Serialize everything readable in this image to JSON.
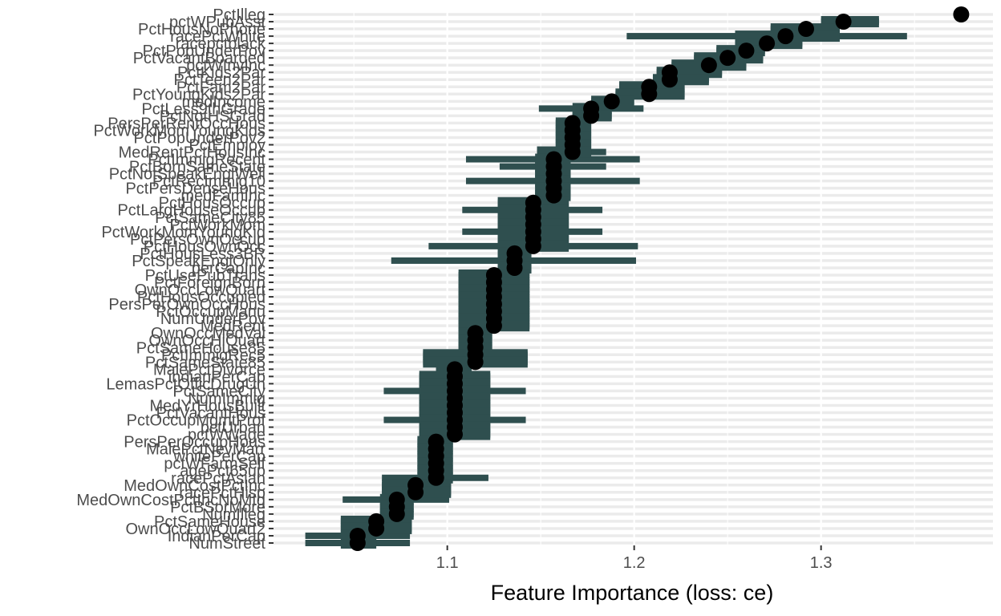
{
  "chart_data": {
    "type": "scatter",
    "title": "",
    "xlabel": "Feature Importance (loss: ce)",
    "ylabel": "",
    "xlim": [
      1.007,
      1.392
    ],
    "xticks": [
      1.1,
      1.2,
      1.3
    ],
    "xtick_labels": [
      "1.1",
      "1.2",
      "1.3"
    ],
    "grid": "on",
    "legend": "none",
    "colors": {
      "interval_bar": "#2f4f4f",
      "point": "#000000",
      "grid_major": "#ebebeb",
      "grid_minor": "#f2f2f2",
      "axis_text": "#4d4d4d"
    },
    "features": [
      {
        "name": "PctIlleg",
        "importance": 1.375,
        "q05": 1.375,
        "q95": 1.375,
        "min": 1.375,
        "max": 1.375
      },
      {
        "name": "pctWPubAsst",
        "importance": 1.312,
        "q05": 1.3,
        "q95": 1.331,
        "min": 1.3,
        "max": 1.331
      },
      {
        "name": "PctHousNoPhone",
        "importance": 1.292,
        "q05": 1.273,
        "q95": 1.31,
        "min": 1.273,
        "max": 1.31
      },
      {
        "name": "racePctWhite",
        "importance": 1.281,
        "q05": 1.254,
        "q95": 1.31,
        "min": 1.196,
        "max": 1.346
      },
      {
        "name": "racepctblack",
        "importance": 1.271,
        "q05": 1.254,
        "q95": 1.29,
        "min": 1.254,
        "max": 1.29
      },
      {
        "name": "PctPopUnderPov",
        "importance": 1.26,
        "q05": 1.244,
        "q95": 1.27,
        "min": 1.244,
        "max": 1.27
      },
      {
        "name": "PctVacantBoarded",
        "importance": 1.25,
        "q05": 1.232,
        "q95": 1.269,
        "min": 1.232,
        "max": 1.269
      },
      {
        "name": "pctWInvInc",
        "importance": 1.24,
        "q05": 1.22,
        "q95": 1.26,
        "min": 1.22,
        "max": 1.26
      },
      {
        "name": "PctKids2Par",
        "importance": 1.219,
        "q05": 1.212,
        "q95": 1.247,
        "min": 1.212,
        "max": 1.247
      },
      {
        "name": "PctTeen2Par",
        "importance": 1.219,
        "q05": 1.21,
        "q95": 1.24,
        "min": 1.21,
        "max": 1.24
      },
      {
        "name": "PctFam2Par",
        "importance": 1.208,
        "q05": 1.192,
        "q95": 1.227,
        "min": 1.192,
        "max": 1.227
      },
      {
        "name": "PctYoungKids2Par",
        "importance": 1.208,
        "q05": 1.19,
        "q95": 1.227,
        "min": 1.19,
        "max": 1.227
      },
      {
        "name": "medIncome",
        "importance": 1.188,
        "q05": 1.177,
        "q95": 1.2,
        "min": 1.177,
        "max": 1.2
      },
      {
        "name": "PctLess9thGrade",
        "importance": 1.177,
        "q05": 1.167,
        "q95": 1.188,
        "min": 1.149,
        "max": 1.205
      },
      {
        "name": "PctNotHSGrad",
        "importance": 1.177,
        "q05": 1.167,
        "q95": 1.188,
        "min": 1.167,
        "max": 1.188
      },
      {
        "name": "PersPerRentOccHous",
        "importance": 1.167,
        "q05": 1.158,
        "q95": 1.177,
        "min": 1.158,
        "max": 1.177
      },
      {
        "name": "PctWorkMomYoungKids",
        "importance": 1.167,
        "q05": 1.158,
        "q95": 1.177,
        "min": 1.158,
        "max": 1.177
      },
      {
        "name": "PctPopUnderPov2",
        "importance": 1.167,
        "q05": 1.158,
        "q95": 1.177,
        "min": 1.158,
        "max": 1.177
      },
      {
        "name": "PctEmploy",
        "importance": 1.167,
        "q05": 1.158,
        "q95": 1.177,
        "min": 1.158,
        "max": 1.177
      },
      {
        "name": "MedRentPctHousInc",
        "importance": 1.167,
        "q05": 1.148,
        "q95": 1.177,
        "min": 1.148,
        "max": 1.185
      },
      {
        "name": "PctImmigRecent",
        "importance": 1.157,
        "q05": 1.147,
        "q95": 1.166,
        "min": 1.11,
        "max": 1.203
      },
      {
        "name": "PctBornSameState",
        "importance": 1.157,
        "q05": 1.147,
        "q95": 1.166,
        "min": 1.128,
        "max": 1.185
      },
      {
        "name": "PctNotSpeakEnglWell",
        "importance": 1.157,
        "q05": 1.147,
        "q95": 1.166,
        "min": 1.147,
        "max": 1.166
      },
      {
        "name": "PctRecImmig10",
        "importance": 1.157,
        "q05": 1.147,
        "q95": 1.166,
        "min": 1.11,
        "max": 1.203
      },
      {
        "name": "PctPersDenseHous",
        "importance": 1.157,
        "q05": 1.147,
        "q95": 1.166,
        "min": 1.147,
        "max": 1.166
      },
      {
        "name": "medFamInc",
        "importance": 1.157,
        "q05": 1.147,
        "q95": 1.166,
        "min": 1.147,
        "max": 1.166
      },
      {
        "name": "PctHousOccup",
        "importance": 1.146,
        "q05": 1.127,
        "q95": 1.165,
        "min": 1.127,
        "max": 1.165
      },
      {
        "name": "PctLargHouseOccup",
        "importance": 1.146,
        "q05": 1.127,
        "q95": 1.165,
        "min": 1.108,
        "max": 1.183
      },
      {
        "name": "PctSameCity85",
        "importance": 1.146,
        "q05": 1.127,
        "q95": 1.165,
        "min": 1.127,
        "max": 1.165
      },
      {
        "name": "PctWorkMom",
        "importance": 1.146,
        "q05": 1.127,
        "q95": 1.165,
        "min": 1.127,
        "max": 1.165
      },
      {
        "name": "PctWorkMomYoungKid",
        "importance": 1.146,
        "q05": 1.127,
        "q95": 1.165,
        "min": 1.108,
        "max": 1.183
      },
      {
        "name": "PctPersOwnOccup",
        "importance": 1.146,
        "q05": 1.127,
        "q95": 1.165,
        "min": 1.127,
        "max": 1.165
      },
      {
        "name": "PctHousOwnOcc",
        "importance": 1.146,
        "q05": 1.127,
        "q95": 1.165,
        "min": 1.09,
        "max": 1.202
      },
      {
        "name": "PctHousLess3BR",
        "importance": 1.136,
        "q05": 1.127,
        "q95": 1.145,
        "min": 1.127,
        "max": 1.145
      },
      {
        "name": "PctSpeakEnglOnly",
        "importance": 1.136,
        "q05": 1.127,
        "q95": 1.145,
        "min": 1.07,
        "max": 1.201
      },
      {
        "name": "perCapInc",
        "importance": 1.136,
        "q05": 1.127,
        "q95": 1.145,
        "min": 1.127,
        "max": 1.145
      },
      {
        "name": "PctUsePubTrans",
        "importance": 1.125,
        "q05": 1.106,
        "q95": 1.144,
        "min": 1.106,
        "max": 1.144
      },
      {
        "name": "PctForeignBorn",
        "importance": 1.125,
        "q05": 1.106,
        "q95": 1.144,
        "min": 1.106,
        "max": 1.144
      },
      {
        "name": "OwnOccLowQuart",
        "importance": 1.125,
        "q05": 1.106,
        "q95": 1.144,
        "min": 1.106,
        "max": 1.144
      },
      {
        "name": "PctHousOccupied",
        "importance": 1.125,
        "q05": 1.106,
        "q95": 1.144,
        "min": 1.106,
        "max": 1.144
      },
      {
        "name": "PersPerOwnOccHous",
        "importance": 1.125,
        "q05": 1.106,
        "q95": 1.144,
        "min": 1.106,
        "max": 1.144
      },
      {
        "name": "PctOccupManu",
        "importance": 1.125,
        "q05": 1.106,
        "q95": 1.144,
        "min": 1.106,
        "max": 1.144
      },
      {
        "name": "NumUnderPov",
        "importance": 1.125,
        "q05": 1.106,
        "q95": 1.144,
        "min": 1.106,
        "max": 1.144
      },
      {
        "name": "MedRent",
        "importance": 1.125,
        "q05": 1.106,
        "q95": 1.144,
        "min": 1.106,
        "max": 1.144
      },
      {
        "name": "OwnOccMedVal",
        "importance": 1.115,
        "q05": 1.106,
        "q95": 1.124,
        "min": 1.106,
        "max": 1.124
      },
      {
        "name": "OwnOccHiQuart",
        "importance": 1.115,
        "q05": 1.106,
        "q95": 1.124,
        "min": 1.106,
        "max": 1.124
      },
      {
        "name": "PctSameHouse85",
        "importance": 1.115,
        "q05": 1.106,
        "q95": 1.124,
        "min": 1.106,
        "max": 1.124
      },
      {
        "name": "PctImmigRec5",
        "importance": 1.115,
        "q05": 1.087,
        "q95": 1.143,
        "min": 1.087,
        "max": 1.143
      },
      {
        "name": "PctSameState85",
        "importance": 1.115,
        "q05": 1.087,
        "q95": 1.143,
        "min": 1.087,
        "max": 1.143
      },
      {
        "name": "MalePctDivorce",
        "importance": 1.104,
        "q05": 1.094,
        "q95": 1.113,
        "min": 1.094,
        "max": 1.113
      },
      {
        "name": "indianPerCap",
        "importance": 1.104,
        "q05": 1.085,
        "q95": 1.123,
        "min": 1.085,
        "max": 1.123
      },
      {
        "name": "LemasPctOfficDrugUn",
        "importance": 1.104,
        "q05": 1.085,
        "q95": 1.123,
        "min": 1.085,
        "max": 1.123
      },
      {
        "name": "PctSameCity",
        "importance": 1.104,
        "q05": 1.085,
        "q95": 1.123,
        "min": 1.066,
        "max": 1.142
      },
      {
        "name": "NumImmig",
        "importance": 1.104,
        "q05": 1.085,
        "q95": 1.123,
        "min": 1.085,
        "max": 1.123
      },
      {
        "name": "MedYrHousBuilt",
        "importance": 1.104,
        "q05": 1.085,
        "q95": 1.123,
        "min": 1.085,
        "max": 1.123
      },
      {
        "name": "PctVacantHous",
        "importance": 1.104,
        "q05": 1.085,
        "q95": 1.123,
        "min": 1.085,
        "max": 1.123
      },
      {
        "name": "PctOccupMgmtProf",
        "importance": 1.104,
        "q05": 1.085,
        "q95": 1.123,
        "min": 1.066,
        "max": 1.142
      },
      {
        "name": "pctUrban",
        "importance": 1.104,
        "q05": 1.085,
        "q95": 1.123,
        "min": 1.085,
        "max": 1.123
      },
      {
        "name": "pctWWage",
        "importance": 1.104,
        "q05": 1.085,
        "q95": 1.123,
        "min": 1.085,
        "max": 1.123
      },
      {
        "name": "PersPerOccupHous",
        "importance": 1.094,
        "q05": 1.084,
        "q95": 1.103,
        "min": 1.084,
        "max": 1.103
      },
      {
        "name": "MalePctNevMarr",
        "importance": 1.094,
        "q05": 1.084,
        "q95": 1.103,
        "min": 1.084,
        "max": 1.103
      },
      {
        "name": "whitePerCap",
        "importance": 1.094,
        "q05": 1.084,
        "q95": 1.103,
        "min": 1.084,
        "max": 1.103
      },
      {
        "name": "pctWFarmSelf",
        "importance": 1.094,
        "q05": 1.084,
        "q95": 1.103,
        "min": 1.084,
        "max": 1.103
      },
      {
        "name": "agePct65up",
        "importance": 1.094,
        "q05": 1.084,
        "q95": 1.103,
        "min": 1.084,
        "max": 1.103
      },
      {
        "name": "racePctAsian",
        "importance": 1.094,
        "q05": 1.084,
        "q95": 1.103,
        "min": 1.065,
        "max": 1.122
      },
      {
        "name": "MedOwnCostPctInc",
        "importance": 1.083,
        "q05": 1.065,
        "q95": 1.102,
        "min": 1.065,
        "max": 1.102
      },
      {
        "name": "racePctHisp",
        "importance": 1.083,
        "q05": 1.065,
        "q95": 1.102,
        "min": 1.065,
        "max": 1.102
      },
      {
        "name": "MedOwnCostPctIncNoMtg",
        "importance": 1.073,
        "q05": 1.064,
        "q95": 1.082,
        "min": 1.044,
        "max": 1.101
      },
      {
        "name": "PctBSorMore",
        "importance": 1.073,
        "q05": 1.064,
        "q95": 1.082,
        "min": 1.064,
        "max": 1.082
      },
      {
        "name": "NumIlleg",
        "importance": 1.073,
        "q05": 1.064,
        "q95": 1.082,
        "min": 1.064,
        "max": 1.082
      },
      {
        "name": "PctSameHouse",
        "importance": 1.062,
        "q05": 1.043,
        "q95": 1.081,
        "min": 1.043,
        "max": 1.081
      },
      {
        "name": "OwnOccLowQuart2",
        "importance": 1.062,
        "q05": 1.043,
        "q95": 1.081,
        "min": 1.043,
        "max": 1.081
      },
      {
        "name": "IndianPerCap",
        "importance": 1.052,
        "q05": 1.043,
        "q95": 1.062,
        "min": 1.024,
        "max": 1.08
      },
      {
        "name": "NumStreet",
        "importance": 1.052,
        "q05": 1.043,
        "q95": 1.062,
        "min": 1.024,
        "max": 1.08
      }
    ]
  }
}
